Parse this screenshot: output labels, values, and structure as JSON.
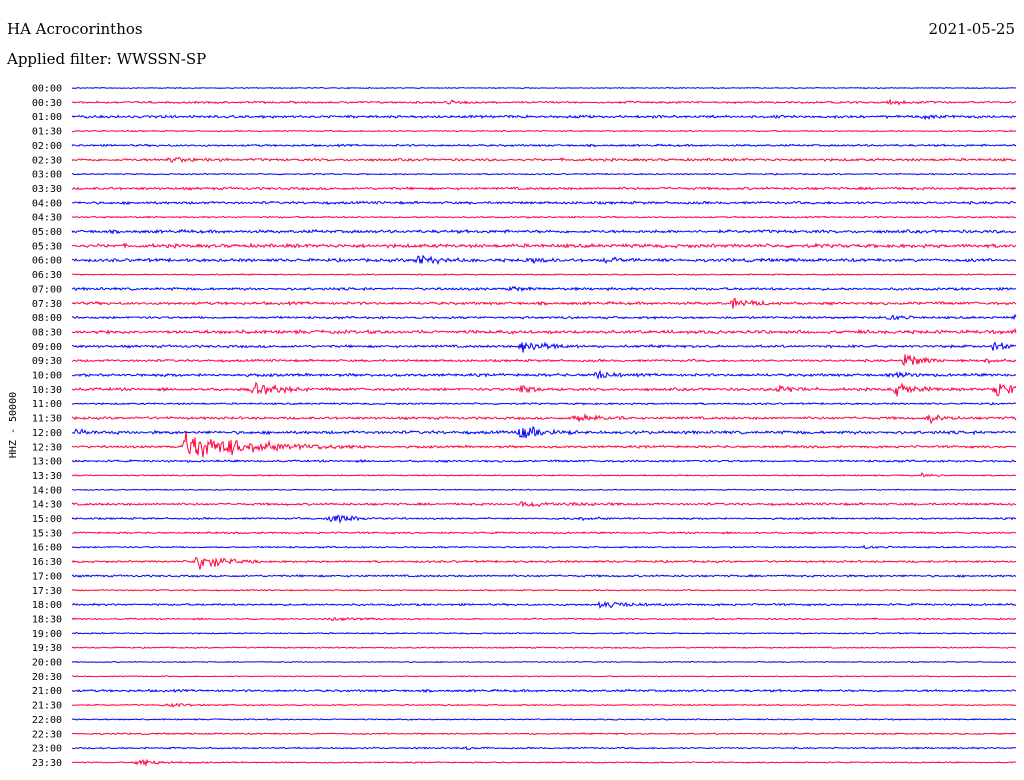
{
  "header": {
    "station": "HA Acrocorinthos",
    "date": "2021-05-25",
    "filter": "Applied filter: WWSSN-SP"
  },
  "chart_data": {
    "type": "line",
    "ylabel": "HHZ - 50000",
    "row_labels": [
      "00:00",
      "00:30",
      "01:00",
      "01:30",
      "02:00",
      "02:30",
      "03:00",
      "03:30",
      "04:00",
      "04:30",
      "05:00",
      "05:30",
      "06:00",
      "06:30",
      "07:00",
      "07:30",
      "08:00",
      "08:30",
      "09:00",
      "09:30",
      "10:00",
      "10:30",
      "11:00",
      "11:30",
      "12:00",
      "12:30",
      "13:00",
      "13:30",
      "14:00",
      "14:30",
      "15:00",
      "15:30",
      "16:00",
      "16:30",
      "17:00",
      "17:30",
      "18:00",
      "18:30",
      "19:00",
      "19:30",
      "20:00",
      "20:30",
      "21:00",
      "21:30",
      "22:00",
      "22:30",
      "23:00",
      "23:30"
    ],
    "colors": [
      "#0000ff",
      "#ff0040"
    ],
    "noise": [
      0.4,
      0.8,
      1.0,
      0.5,
      0.8,
      1.0,
      0.5,
      1.0,
      1.0,
      0.6,
      1.2,
      1.4,
      1.2,
      0.5,
      1.0,
      1.1,
      0.9,
      1.3,
      1.0,
      0.9,
      1.1,
      1.1,
      0.7,
      1.0,
      1.2,
      0.9,
      0.8,
      0.5,
      0.4,
      0.9,
      0.7,
      0.7,
      0.6,
      0.8,
      0.8,
      0.5,
      0.8,
      0.6,
      0.5,
      0.5,
      0.4,
      0.4,
      0.9,
      0.5,
      0.5,
      0.6,
      0.6,
      0.5
    ],
    "events": [
      {
        "row": 1,
        "minute": 12,
        "amp": 2,
        "dur": 0.3
      },
      {
        "row": 1,
        "minute": 26,
        "amp": 2,
        "dur": 0.5
      },
      {
        "row": 2,
        "minute": 27,
        "amp": 2,
        "dur": 0.8
      },
      {
        "row": 5,
        "minute": 3,
        "amp": 3,
        "dur": 0.8
      },
      {
        "row": 12,
        "minute": 11,
        "amp": 6,
        "dur": 0.6
      },
      {
        "row": 12,
        "minute": 14.5,
        "amp": 4,
        "dur": 0.3
      },
      {
        "row": 12,
        "minute": 17,
        "amp": 3,
        "dur": 0.3
      },
      {
        "row": 14,
        "minute": 14,
        "amp": 3,
        "dur": 0.3
      },
      {
        "row": 15,
        "minute": 21,
        "amp": 5,
        "dur": 0.6
      },
      {
        "row": 16,
        "minute": 26,
        "amp": 4,
        "dur": 0.3
      },
      {
        "row": 16,
        "minute": 30,
        "amp": 3,
        "dur": 0.3
      },
      {
        "row": 17,
        "minute": 30,
        "amp": 3,
        "dur": 0.7
      },
      {
        "row": 18,
        "minute": 14.3,
        "amp": 10,
        "dur": 0.6
      },
      {
        "row": 18,
        "minute": 29.3,
        "amp": 6,
        "dur": 0.4
      },
      {
        "row": 19,
        "minute": 26.5,
        "amp": 9,
        "dur": 0.5
      },
      {
        "row": 19,
        "minute": 29,
        "amp": 3,
        "dur": 0.3
      },
      {
        "row": 20,
        "minute": 16.7,
        "amp": 5,
        "dur": 0.4
      },
      {
        "row": 20,
        "minute": 26.3,
        "amp": 4,
        "dur": 0.3
      },
      {
        "row": 21,
        "minute": 5.8,
        "amp": 10,
        "dur": 0.6
      },
      {
        "row": 21,
        "minute": 14.3,
        "amp": 5,
        "dur": 0.3
      },
      {
        "row": 21,
        "minute": 22.5,
        "amp": 5,
        "dur": 0.4
      },
      {
        "row": 21,
        "minute": 26.2,
        "amp": 7,
        "dur": 0.5
      },
      {
        "row": 21,
        "minute": 29.4,
        "amp": 9,
        "dur": 0.5
      },
      {
        "row": 23,
        "minute": 16,
        "amp": 5,
        "dur": 0.6
      },
      {
        "row": 23,
        "minute": 27.2,
        "amp": 5,
        "dur": 0.4
      },
      {
        "row": 23,
        "minute": 30,
        "amp": 3,
        "dur": 0.6
      },
      {
        "row": 24,
        "minute": 0.2,
        "amp": 3,
        "dur": 0.4
      },
      {
        "row": 24,
        "minute": 14.3,
        "amp": 9,
        "dur": 0.6
      },
      {
        "row": 25,
        "minute": 3.6,
        "amp": 16,
        "dur": 2.0
      },
      {
        "row": 27,
        "minute": 27,
        "amp": 2,
        "dur": 0.3
      },
      {
        "row": 29,
        "minute": 14.3,
        "amp": 3,
        "dur": 1.2
      },
      {
        "row": 30,
        "minute": 8.2,
        "amp": 5,
        "dur": 0.7
      },
      {
        "row": 30,
        "minute": 16,
        "amp": 2,
        "dur": 0.6
      },
      {
        "row": 32,
        "minute": 25.2,
        "amp": 2,
        "dur": 0.3
      },
      {
        "row": 33,
        "minute": 4.0,
        "amp": 11,
        "dur": 0.7
      },
      {
        "row": 36,
        "minute": 16.8,
        "amp": 4,
        "dur": 0.8
      },
      {
        "row": 37,
        "minute": 8.1,
        "amp": 2,
        "dur": 0.9
      },
      {
        "row": 43,
        "minute": 3,
        "amp": 2,
        "dur": 0.7
      },
      {
        "row": 46,
        "minute": 12.5,
        "amp": 2,
        "dur": 0.3
      },
      {
        "row": 47,
        "minute": 2.1,
        "amp": 4,
        "dur": 0.7
      }
    ]
  }
}
